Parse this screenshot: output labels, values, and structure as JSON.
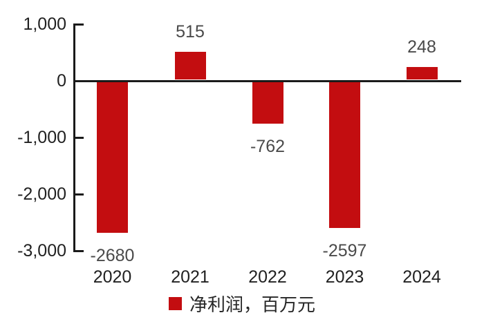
{
  "chart_data": {
    "type": "bar",
    "title": "",
    "xlabel": "",
    "ylabel": "",
    "categories": [
      "2020",
      "2021",
      "2022",
      "2023",
      "2024"
    ],
    "values": [
      -2680,
      515,
      -762,
      -2597,
      248
    ],
    "data_labels": [
      "-2680",
      "515",
      "-762",
      "-2597",
      "248"
    ],
    "series_name": "净利润，百万元",
    "ylim": [
      -3000,
      1000
    ],
    "yticks": [
      {
        "value": 1000,
        "label": "1,000"
      },
      {
        "value": 0,
        "label": "0"
      },
      {
        "value": -1000,
        "label": "-1,000"
      },
      {
        "value": -2000,
        "label": "-2,000"
      },
      {
        "value": -3000,
        "label": "-3,000"
      }
    ],
    "grid": "off",
    "legend_position": "bottom",
    "bar_color": "#c30d10",
    "value_label_color": "#4a4a4a",
    "axis_text_color": "#212121",
    "axis_line_color": "#1a1a1a",
    "background_color": "#ffffff"
  },
  "legend": {
    "swatch_color": "#c30d10",
    "label": "净利润，百万元"
  }
}
